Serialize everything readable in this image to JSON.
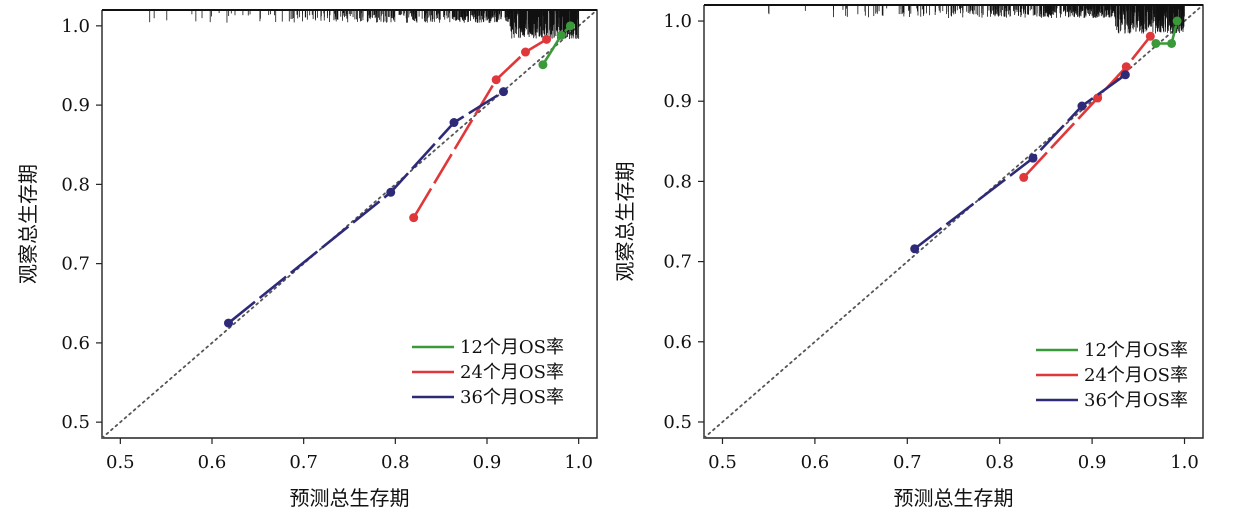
{
  "chart_data": [
    {
      "type": "line",
      "xlabel": "预测总生存期",
      "ylabel": "观察总生存期",
      "xlim": [
        0.48,
        1.02
      ],
      "ylim": [
        0.48,
        1.02
      ],
      "xticks": [
        "0.5",
        "0.6",
        "0.7",
        "0.8",
        "0.9",
        "1.0"
      ],
      "yticks": [
        "0.5",
        "0.6",
        "0.7",
        "0.8",
        "0.9",
        "1.0"
      ],
      "reference_line": "y = x (dotted)",
      "legend_position": "bottom-right",
      "series": [
        {
          "name": "12个月OS率",
          "color": "#3a9a3a",
          "x": [
            0.961,
            0.981,
            0.991
          ],
          "y": [
            0.951,
            0.988,
            1.0
          ]
        },
        {
          "name": "24个月OS率",
          "color": "#e0373a",
          "x": [
            0.82,
            0.91,
            0.942,
            0.965
          ],
          "y": [
            0.758,
            0.932,
            0.967,
            0.983
          ]
        },
        {
          "name": "36个月OS率",
          "color": "#2e2a78",
          "x": [
            0.618,
            0.795,
            0.864,
            0.918
          ],
          "y": [
            0.625,
            0.79,
            0.878,
            0.917
          ]
        }
      ]
    },
    {
      "type": "line",
      "xlabel": "预测总生存期",
      "ylabel": "观察总生存期",
      "xlim": [
        0.48,
        1.02
      ],
      "ylim": [
        0.48,
        1.02
      ],
      "xticks": [
        "0.5",
        "0.6",
        "0.7",
        "0.8",
        "0.9",
        "1.0"
      ],
      "yticks": [
        "0.5",
        "0.6",
        "0.7",
        "0.8",
        "0.9",
        "1.0"
      ],
      "reference_line": "y = x (dotted)",
      "legend_position": "bottom-right",
      "series": [
        {
          "name": "12个月OS率",
          "color": "#3a9a3a",
          "x": [
            0.969,
            0.986,
            0.992
          ],
          "y": [
            0.972,
            0.972,
            1.0
          ]
        },
        {
          "name": "24个月OS率",
          "color": "#e0373a",
          "x": [
            0.826,
            0.906,
            0.937,
            0.963
          ],
          "y": [
            0.805,
            0.904,
            0.943,
            0.981
          ]
        },
        {
          "name": "36个月OS率",
          "color": "#2e2a78",
          "x": [
            0.708,
            0.836,
            0.889,
            0.936
          ],
          "y": [
            0.716,
            0.829,
            0.894,
            0.933
          ]
        }
      ]
    }
  ]
}
